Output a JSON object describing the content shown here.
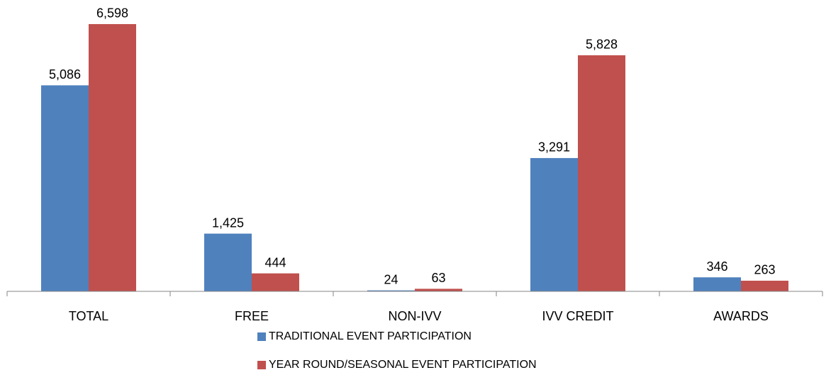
{
  "chart_data": {
    "type": "bar",
    "categories": [
      "TOTAL",
      "FREE",
      "NON-IVV",
      "IVV CREDIT",
      "AWARDS"
    ],
    "series": [
      {
        "name": "TRADITIONAL EVENT PARTICIPATION",
        "color": "#4f81bd",
        "values": [
          5086,
          1425,
          24,
          3291,
          346
        ],
        "value_labels": [
          "5,086",
          "1,425",
          "24",
          "3,291",
          "346"
        ]
      },
      {
        "name": "YEAR ROUND/SEASONAL EVENT PARTICIPATION",
        "color": "#c0504d",
        "values": [
          6598,
          444,
          63,
          5828,
          263
        ],
        "value_labels": [
          "6,598",
          "444",
          "63",
          "5,828",
          "263"
        ]
      }
    ],
    "ylim": [
      0,
      7000
    ],
    "grid": false,
    "legend": "bottom"
  }
}
